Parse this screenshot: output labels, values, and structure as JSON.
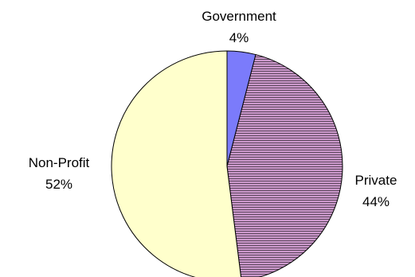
{
  "chart_data": {
    "type": "pie",
    "title": "",
    "legend": "none",
    "slices": [
      {
        "label": "Government",
        "value_label": "4%",
        "value": 4,
        "color": "#7b7bfb",
        "pattern": "solid"
      },
      {
        "label": "Private",
        "value_label": "44%",
        "value": 44,
        "color": "#cc99cc",
        "pattern": "horizontal-lines"
      },
      {
        "label": "Non-Profit",
        "value_label": "52%",
        "value": 52,
        "color": "#ffffcc",
        "pattern": "solid"
      }
    ]
  }
}
